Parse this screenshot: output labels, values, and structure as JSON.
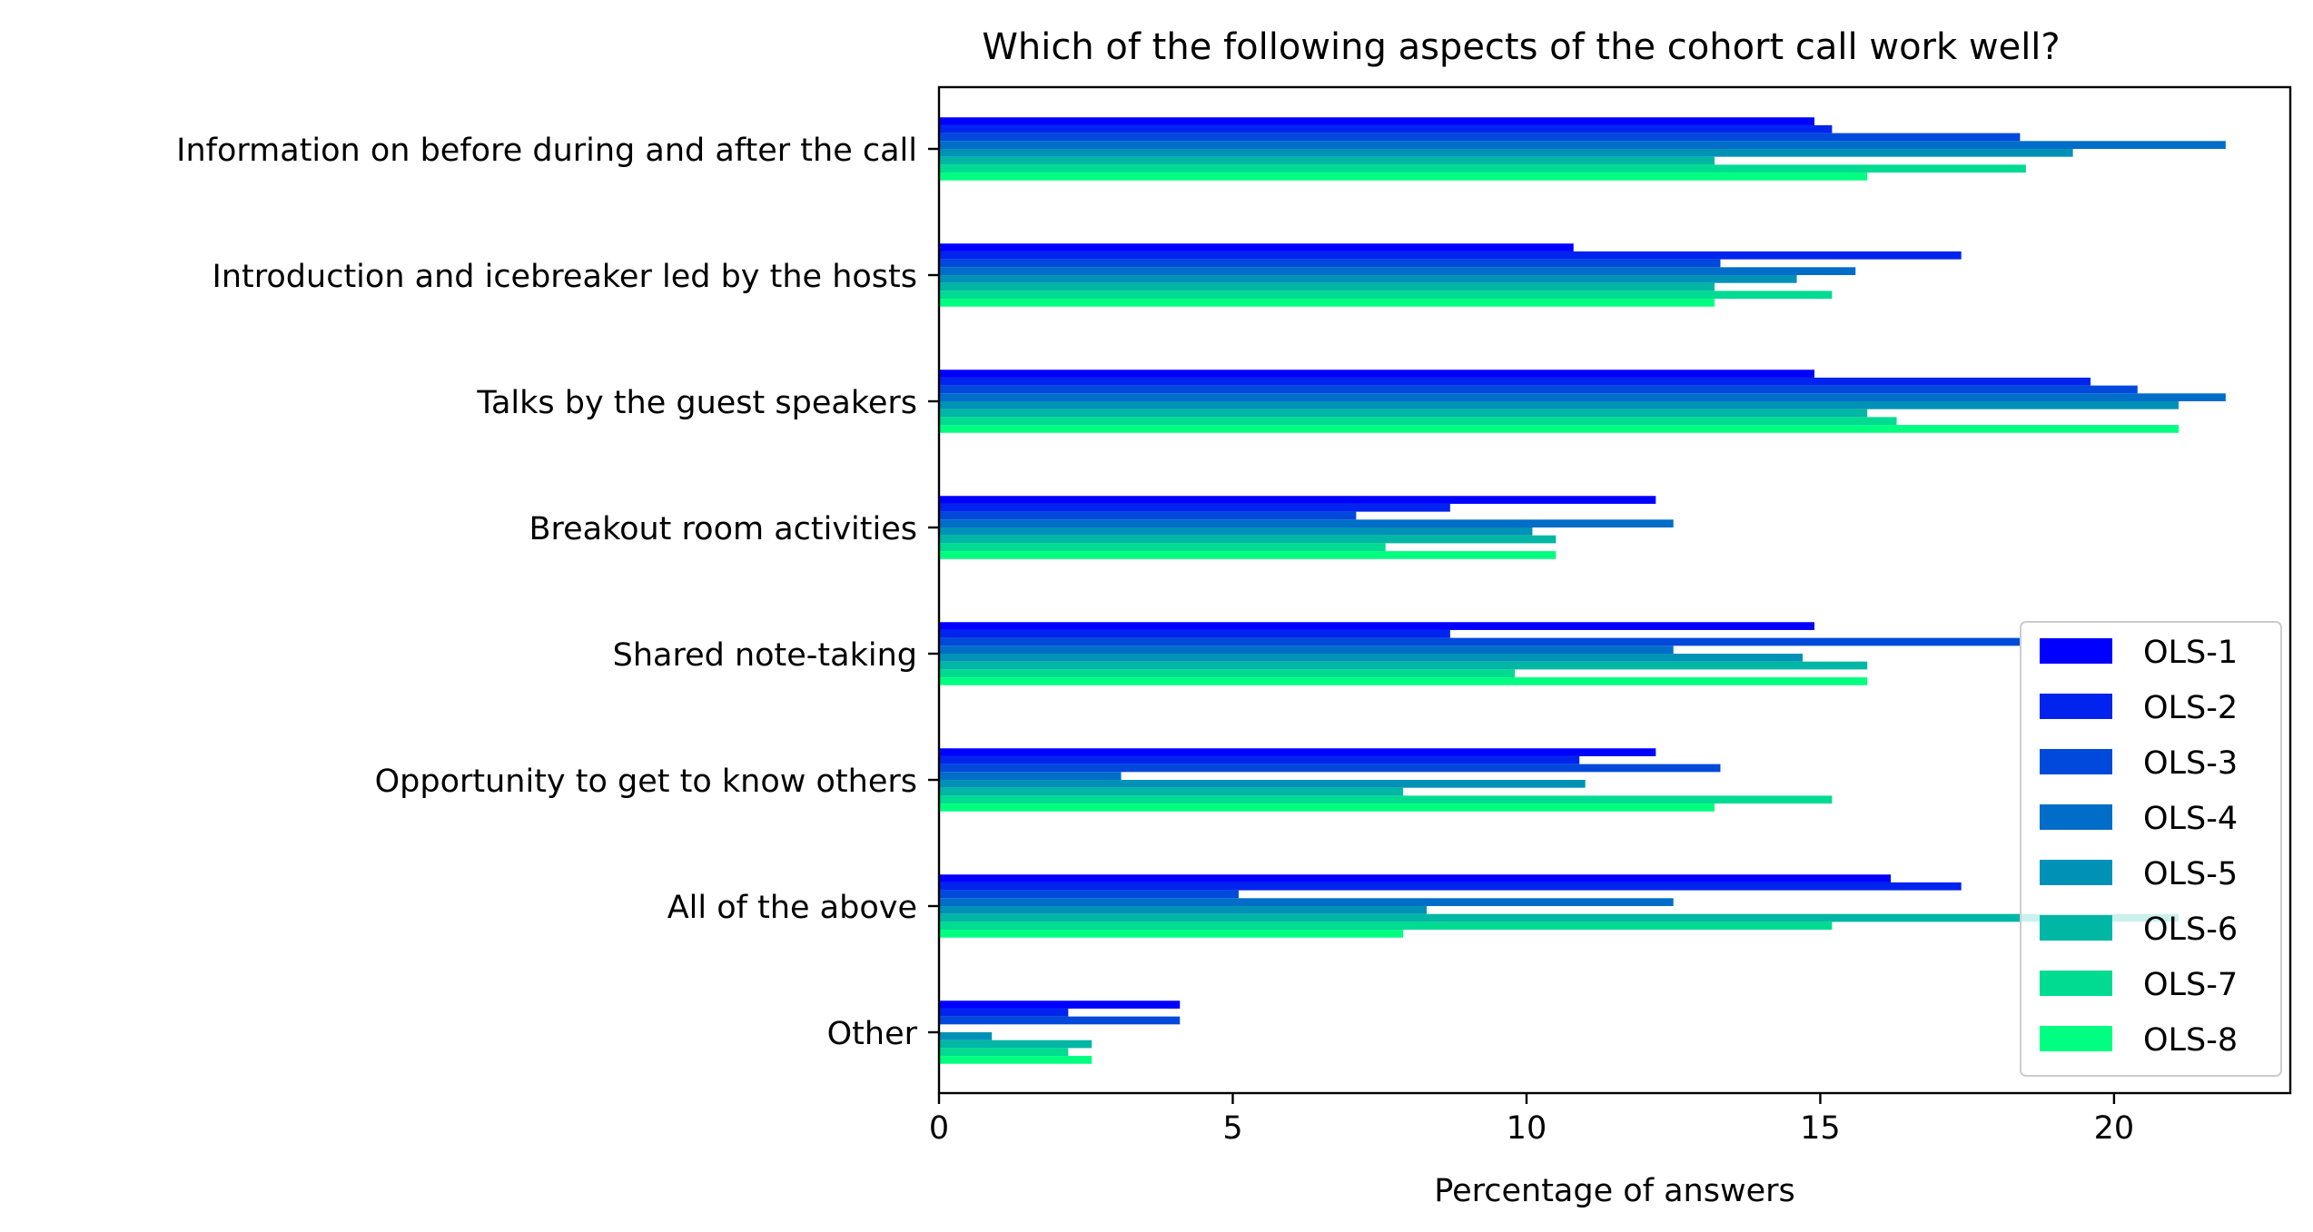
{
  "chart_data": {
    "type": "bar",
    "orientation": "horizontal",
    "title": "Which of the following aspects of the cohort call work well?",
    "xlabel": "Percentage of answers",
    "ylabel": "",
    "xlim": [
      0,
      23
    ],
    "xticks": [
      0,
      5,
      10,
      15,
      20
    ],
    "grid": false,
    "legend_position": "lower-right",
    "categories": [
      "Information on before during and after the call",
      "Introduction and icebreaker led by the hosts",
      "Talks by the guest speakers",
      "Breakout room activities",
      "Shared note-taking",
      "Opportunity to get to know others",
      "All of the above",
      "Other"
    ],
    "series": [
      {
        "name": "OLS-1",
        "color": "#0000ff",
        "values": [
          14.9,
          10.8,
          14.9,
          12.2,
          14.9,
          12.2,
          16.2,
          4.1
        ]
      },
      {
        "name": "OLS-2",
        "color": "#0024ed",
        "values": [
          15.2,
          17.4,
          19.6,
          8.7,
          8.7,
          10.9,
          17.4,
          2.2
        ]
      },
      {
        "name": "OLS-3",
        "color": "#0049db",
        "values": [
          18.4,
          13.3,
          20.4,
          7.1,
          18.4,
          13.3,
          5.1,
          4.1
        ]
      },
      {
        "name": "OLS-4",
        "color": "#006dc8",
        "values": [
          21.9,
          15.6,
          21.9,
          12.5,
          12.5,
          3.1,
          12.5,
          0.0
        ]
      },
      {
        "name": "OLS-5",
        "color": "#0092b6",
        "values": [
          19.3,
          14.6,
          21.1,
          10.1,
          14.7,
          11.0,
          8.3,
          0.9
        ]
      },
      {
        "name": "OLS-6",
        "color": "#00b6a4",
        "values": [
          13.2,
          13.2,
          15.8,
          10.5,
          15.8,
          7.9,
          21.1,
          2.6
        ]
      },
      {
        "name": "OLS-7",
        "color": "#00db92",
        "values": [
          18.5,
          15.2,
          16.3,
          7.6,
          9.8,
          15.2,
          15.2,
          2.2
        ]
      },
      {
        "name": "OLS-8",
        "color": "#00ff80",
        "values": [
          15.8,
          13.2,
          21.1,
          10.5,
          15.8,
          13.2,
          7.9,
          2.6
        ]
      }
    ]
  }
}
